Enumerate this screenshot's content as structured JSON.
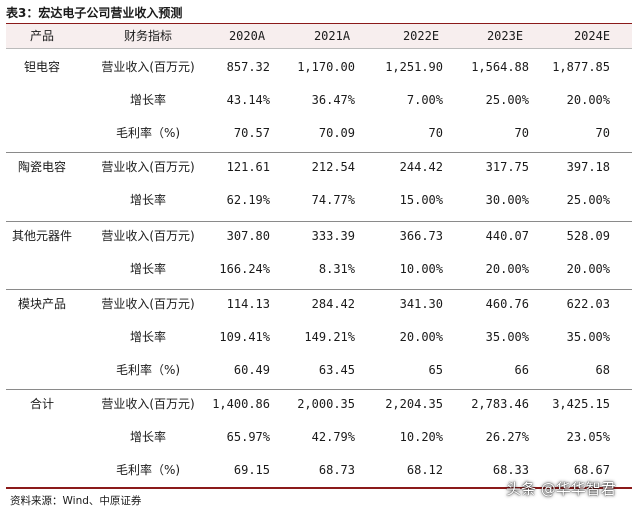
{
  "title": "表3：宏达电子公司营业收入预测",
  "header": {
    "product": "产品",
    "metric": "财务指标",
    "years": [
      "2020A",
      "2021A",
      "2022E",
      "2023E",
      "2024E"
    ]
  },
  "groups": [
    {
      "product": "钽电容",
      "rows": [
        {
          "metric": "营业收入(百万元)",
          "values": [
            "857.32",
            "1,170.00",
            "1,251.90",
            "1,564.88",
            "1,877.85"
          ]
        },
        {
          "metric": "增长率",
          "values": [
            "43.14%",
            "36.47%",
            "7.00%",
            "25.00%",
            "20.00%"
          ]
        },
        {
          "metric": "毛利率（%)",
          "values": [
            "70.57",
            "70.09",
            "70",
            "70",
            "70"
          ]
        }
      ]
    },
    {
      "product": "陶瓷电容",
      "rows": [
        {
          "metric": "营业收入(百万元)",
          "values": [
            "121.61",
            "212.54",
            "244.42",
            "317.75",
            "397.18"
          ]
        },
        {
          "metric": "增长率",
          "values": [
            "62.19%",
            "74.77%",
            "15.00%",
            "30.00%",
            "25.00%"
          ]
        }
      ]
    },
    {
      "product": "其他元器件",
      "rows": [
        {
          "metric": "营业收入(百万元)",
          "values": [
            "307.80",
            "333.39",
            "366.73",
            "440.07",
            "528.09"
          ]
        },
        {
          "metric": "增长率",
          "values": [
            "166.24%",
            "8.31%",
            "10.00%",
            "20.00%",
            "20.00%"
          ]
        }
      ]
    },
    {
      "product": "模块产品",
      "rows": [
        {
          "metric": "营业收入(百万元)",
          "values": [
            "114.13",
            "284.42",
            "341.30",
            "460.76",
            "622.03"
          ]
        },
        {
          "metric": "增长率",
          "values": [
            "109.41%",
            "149.21%",
            "20.00%",
            "35.00%",
            "35.00%"
          ]
        },
        {
          "metric": "毛利率（%)",
          "values": [
            "60.49",
            "63.45",
            "65",
            "66",
            "68"
          ]
        }
      ]
    },
    {
      "product": "合计",
      "rows": [
        {
          "metric": "营业收入(百万元)",
          "values": [
            "1,400.86",
            "2,000.35",
            "2,204.35",
            "2,783.46",
            "3,425.15"
          ]
        },
        {
          "metric": "增长率",
          "values": [
            "65.97%",
            "42.79%",
            "10.20%",
            "26.27%",
            "23.05%"
          ]
        },
        {
          "metric": "毛利率（%)",
          "values": [
            "69.15",
            "68.73",
            "68.12",
            "68.33",
            "68.67"
          ]
        }
      ]
    }
  ],
  "source": "资料来源：Wind、中原证券",
  "watermark": "头条 @华华智君"
}
